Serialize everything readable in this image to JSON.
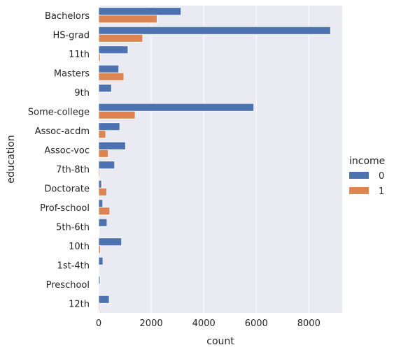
{
  "chart_data": {
    "type": "bar",
    "orientation": "horizontal",
    "categories": [
      "Bachelors",
      "HS-grad",
      "11th",
      "Masters",
      "9th",
      "Some-college",
      "Assoc-acdm",
      "Assoc-voc",
      "7th-8th",
      "Doctorate",
      "Prof-school",
      "5th-6th",
      "10th",
      "1st-4th",
      "Preschool",
      "12th"
    ],
    "series": [
      {
        "name": "0",
        "color": "#4c72b0",
        "values": [
          3134,
          8826,
          1115,
          764,
          487,
          5904,
          802,
          1021,
          606,
          107,
          153,
          317,
          871,
          162,
          51,
          400
        ]
      },
      {
        "name": "1",
        "color": "#dd8452",
        "values": [
          2221,
          1675,
          60,
          959,
          27,
          1387,
          265,
          361,
          40,
          306,
          423,
          16,
          62,
          6,
          0,
          33
        ]
      }
    ],
    "xlabel": "count",
    "ylabel": "education",
    "xlim": [
      0,
      9270
    ],
    "xticks": [
      0,
      2000,
      4000,
      6000,
      8000
    ],
    "grid": true,
    "legend": {
      "title": "income",
      "placement": "right"
    }
  }
}
